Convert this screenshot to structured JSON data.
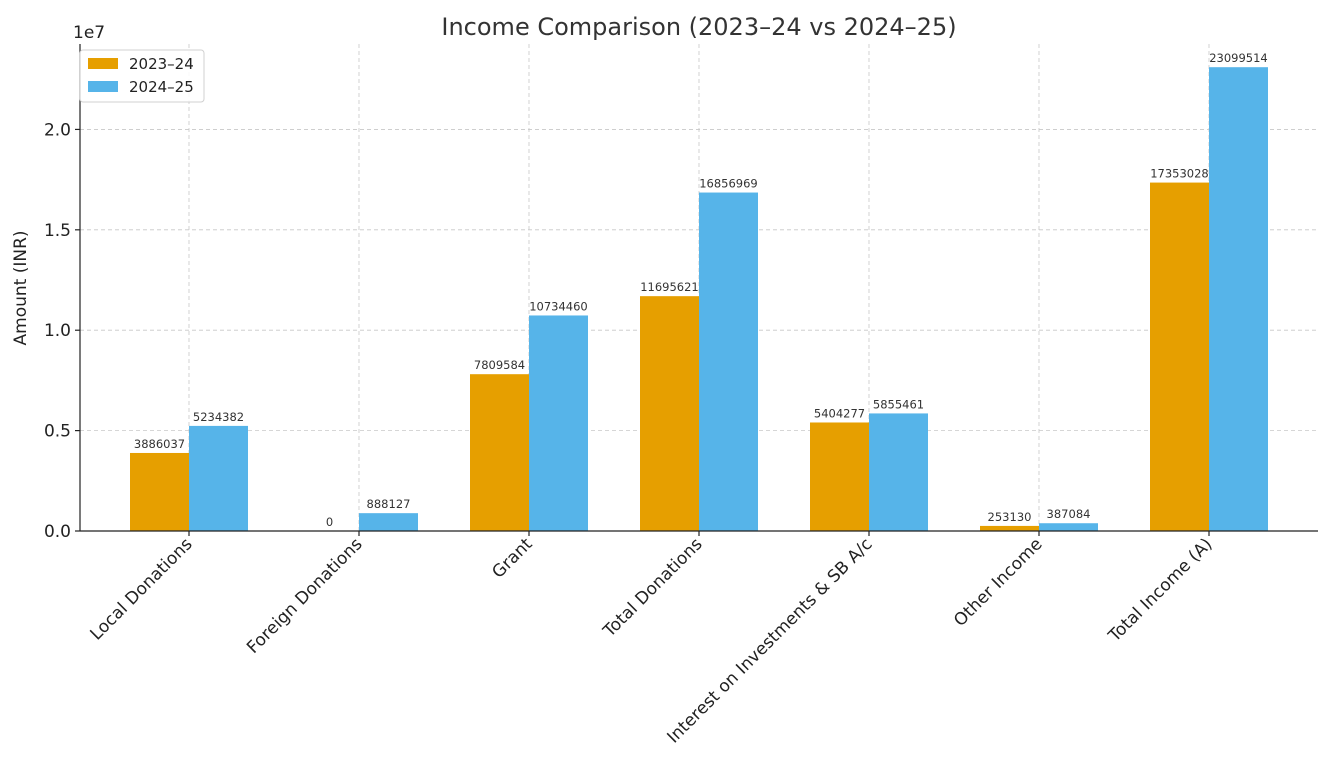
{
  "chart_data": {
    "type": "bar",
    "title": "Income Comparison (2023–24 vs 2024–25)",
    "xlabel": "",
    "ylabel": "Amount (INR)",
    "y_offset_text": "1e7",
    "categories": [
      "Local Donations",
      "Foreign Donations",
      "Grant",
      "Total Donations",
      "Interest on Investments & SB A/c",
      "Other Income",
      "Total Income (A)"
    ],
    "series": [
      {
        "name": "2023–24",
        "color": "#E69F00",
        "values": [
          3886037,
          0,
          7809584,
          11695621,
          5404277,
          253130,
          17353028
        ]
      },
      {
        "name": "2024–25",
        "color": "#56B4E9",
        "values": [
          5234382,
          888127,
          10734460,
          16856969,
          5855461,
          387084,
          23099514
        ]
      }
    ],
    "ylim": [
      0,
      24254490
    ],
    "yticks": [
      0,
      5000000,
      10000000,
      15000000,
      20000000
    ],
    "ytick_labels": [
      "0.0",
      "0.5",
      "1.0",
      "1.5",
      "2.0"
    ],
    "grid": true,
    "legend_position": "top-left"
  }
}
